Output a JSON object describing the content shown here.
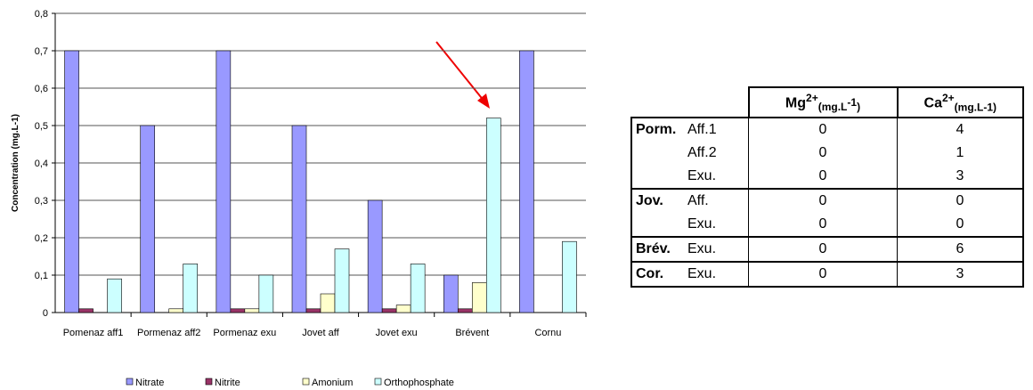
{
  "chart_data": {
    "type": "bar",
    "ylabel": "Concentration (mg.L-1)",
    "categories": [
      "Pomenaz aff1",
      "Pormenaz aff2",
      "Pormenaz exu",
      "Jovet aff",
      "Jovet exu",
      "Brévent",
      "Cornu"
    ],
    "series": [
      {
        "name": "Nitrate",
        "color": "#9999ff",
        "values": [
          0.7,
          0.5,
          0.7,
          0.5,
          0.3,
          0.1,
          0.7
        ]
      },
      {
        "name": "Nitrite",
        "color": "#993366",
        "values": [
          0.01,
          0,
          0.01,
          0.01,
          0.01,
          0.01,
          0
        ]
      },
      {
        "name": "Amonium",
        "color": "#ffffcc",
        "values": [
          0,
          0.01,
          0.01,
          0.05,
          0.02,
          0.08,
          0
        ]
      },
      {
        "name": "Orthophosphate",
        "color": "#ccffff",
        "values": [
          0.09,
          0.13,
          0.1,
          0.17,
          0.13,
          0.52,
          0.19
        ]
      }
    ],
    "ylim": [
      0,
      0.8
    ],
    "yticks": [
      0,
      {
        "value": 0.1,
        "label": "0,1"
      },
      {
        "value": 0.2,
        "label": "0,2"
      },
      {
        "value": 0.3,
        "label": "0,3"
      },
      {
        "value": 0.4,
        "label": "0,4"
      },
      {
        "value": 0.5,
        "label": "0,5"
      },
      {
        "value": 0.6,
        "label": "0,6"
      },
      {
        "value": 0.7,
        "label": "0,7"
      },
      {
        "value": 0.8,
        "label": "0,8"
      }
    ],
    "grid": true,
    "legend": "bottom"
  },
  "table": {
    "header": [
      {
        "ion": "Mg",
        "charge": "2+",
        "unit": "(mg.L",
        "exp": "-1",
        "close": ")"
      },
      {
        "ion": "Ca",
        "charge": "2+",
        "unit": "(mg.L-1)"
      }
    ],
    "rows": [
      {
        "group": "Porm.",
        "site": "Aff.1",
        "values": [
          "0",
          "4"
        ]
      },
      {
        "site": "Aff.2",
        "values": [
          "0",
          "1"
        ]
      },
      {
        "site": "Exu.",
        "values": [
          "0",
          "3"
        ]
      },
      {
        "group": "Jov.",
        "site": "Aff.",
        "values": [
          "0",
          "0"
        ]
      },
      {
        "site": "Exu.",
        "values": [
          "0",
          "0"
        ]
      },
      {
        "group": "Brév.",
        "site": "Exu.",
        "values": [
          "0",
          "6"
        ]
      },
      {
        "group": "Cor.",
        "site": "Exu.",
        "values": [
          "0",
          "3"
        ]
      }
    ]
  }
}
